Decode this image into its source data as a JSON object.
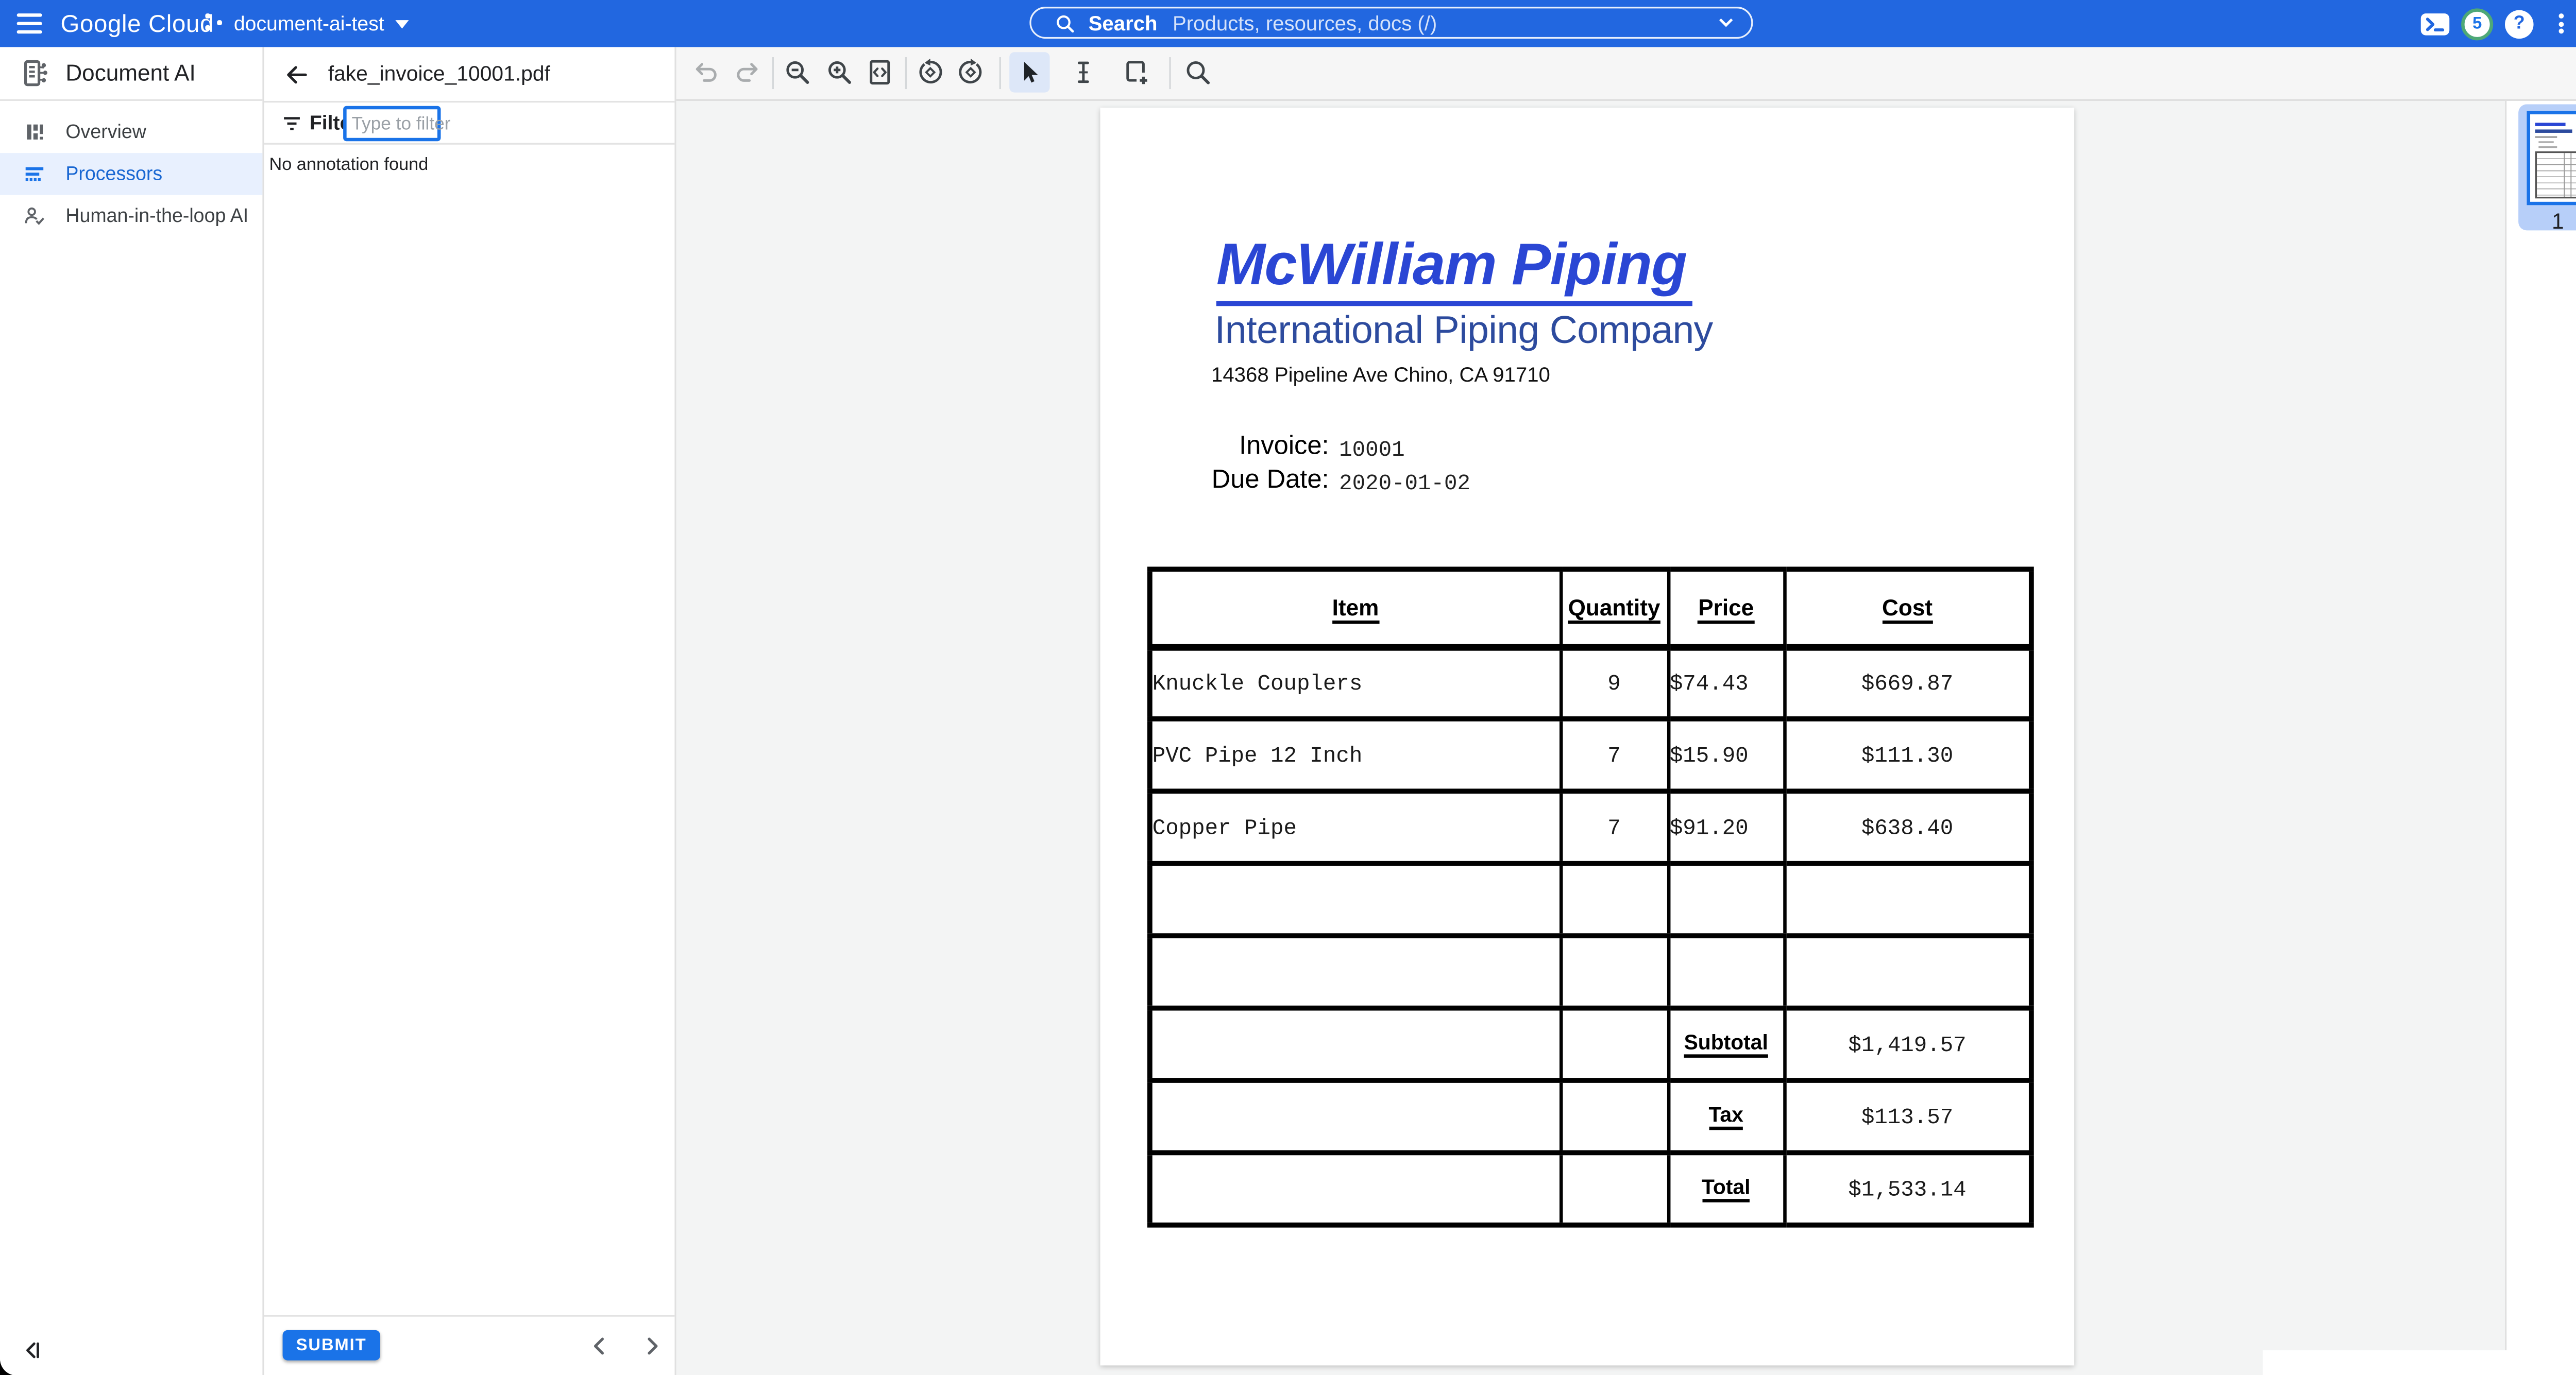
{
  "colors": {
    "topbar_blue": "#2267e0",
    "accent_blue": "#1a73e8",
    "selected_nav_bg": "#e8f0fe",
    "selected_nav_text": "#1967d2",
    "notification_ring_green": "#4ea877",
    "invoice_title_blue": "#2a46d4",
    "invoice_subtitle_blue": "#2d4b9e"
  },
  "topbar": {
    "logo": "Google Cloud",
    "project_name": "document-ai-test",
    "search_label": "Search",
    "search_placeholder": "Products, resources, docs (/)",
    "notification_count": "5",
    "help_glyph": "?",
    "icon_names": [
      "menu-icon",
      "search-icon",
      "chevron-down-icon",
      "cloud-shell-icon",
      "notifications-badge",
      "help-icon",
      "more-vert-icon",
      "avatar"
    ]
  },
  "sidebar": {
    "title": "Document AI",
    "items": [
      {
        "label": "Overview",
        "selected": false,
        "icon": "overview-icon"
      },
      {
        "label": "Processors",
        "selected": true,
        "icon": "processors-icon"
      },
      {
        "label": "Human-in-the-loop AI",
        "selected": false,
        "icon": "human-in-the-loop-icon"
      }
    ]
  },
  "panel": {
    "filename": "fake_invoice_10001.pdf",
    "filter_label": "Filter",
    "filter_placeholder": "Type to filter",
    "empty_message": "No annotation found",
    "submit_label": "SUBMIT",
    "icon_names": [
      "back-arrow-icon",
      "filter-icon",
      "chevron-left-icon",
      "chevron-right-icon",
      "collapse-panel-icon"
    ]
  },
  "viewer": {
    "page_number": "1",
    "toolbar_icon_names": [
      "undo-icon",
      "redo-icon",
      "zoom-out-icon",
      "zoom-in-icon",
      "fit-width-icon",
      "rotate-left-icon",
      "rotate-right-icon",
      "select-cursor-icon",
      "text-select-icon",
      "add-region-icon",
      "search-document-icon"
    ],
    "toolbar_disabled": [
      "undo-icon",
      "redo-icon"
    ],
    "toolbar_selected": "select-cursor-icon"
  },
  "invoice": {
    "company": "McWilliam Piping",
    "subtitle": "International Piping Company",
    "address": "14368 Pipeline Ave Chino, CA 91710",
    "invoice_label": "Invoice:",
    "invoice_number": "10001",
    "due_date_label": "Due Date:",
    "due_date": "2020-01-02",
    "table": {
      "headers": [
        "Item",
        "Quantity",
        "Price",
        "Cost"
      ],
      "rows": [
        [
          "Knuckle Couplers",
          "9",
          "$74.43",
          "$669.87"
        ],
        [
          "PVC Pipe 12 Inch",
          "7",
          "$15.90",
          "$111.30"
        ],
        [
          "Copper Pipe",
          "7",
          "$91.20",
          "$638.40"
        ],
        [
          "",
          "",
          "",
          ""
        ],
        [
          "",
          "",
          "",
          ""
        ]
      ],
      "totals": [
        {
          "label": "Subtotal",
          "value": "$1,419.57"
        },
        {
          "label": "Tax",
          "value": "$113.57"
        },
        {
          "label": "Total",
          "value": "$1,533.14"
        }
      ]
    }
  }
}
